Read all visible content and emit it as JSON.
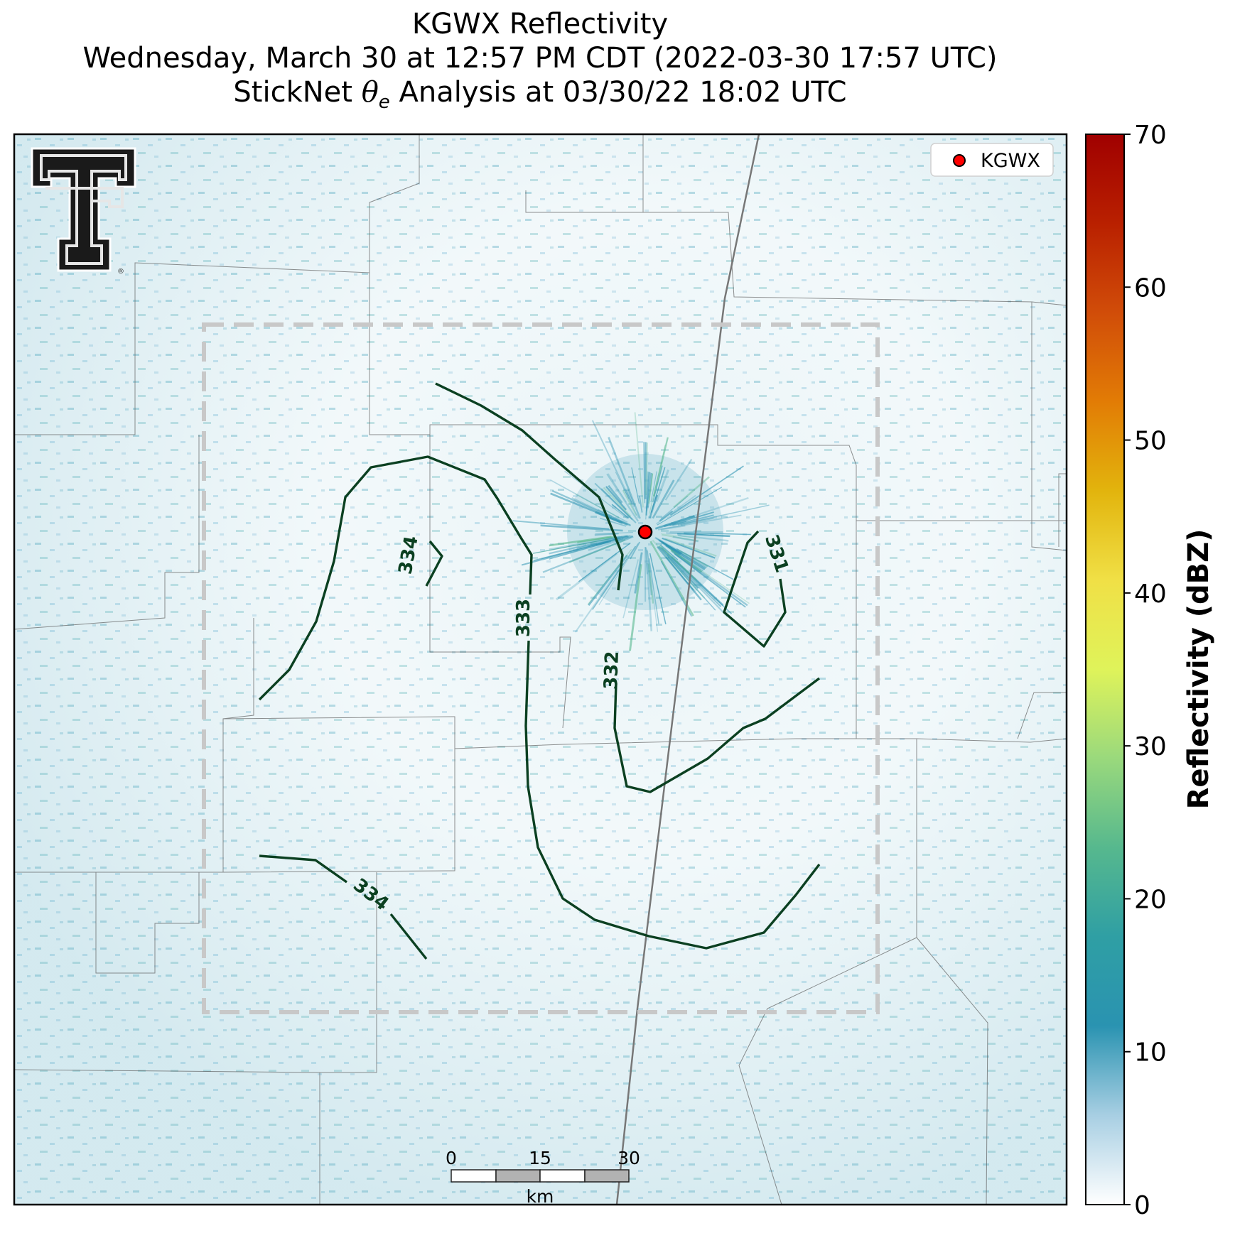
{
  "title": {
    "line1": "KGWX Reflectivity",
    "line2": "Wednesday, March 30 at 12:57 PM CDT (2022-03-30 17:57 UTC)",
    "line3_prefix": "StickNet ",
    "line3_symbol": "θ",
    "line3_subscript": "e",
    "line3_suffix": " Analysis at 03/30/22 18:02 UTC"
  },
  "legend": {
    "radar_label": "KGWX",
    "marker_color": "#ff0000"
  },
  "colorbar": {
    "label": "Reflectivity (dBZ)",
    "min": 0,
    "max": 70,
    "ticks": [
      "0",
      "10",
      "20",
      "30",
      "40",
      "50",
      "60",
      "70"
    ],
    "colors": [
      "#ffffff",
      "#a8cfe3",
      "#2a93b1",
      "#2f9fa4",
      "#56b88e",
      "#9ad97c",
      "#dff35a",
      "#f0e046",
      "#e2b40d",
      "#e27c05",
      "#d14d09",
      "#b92000",
      "#a00000"
    ]
  },
  "contours": {
    "variable": "theta_e",
    "color": "#0b4021",
    "labels": [
      "334",
      "333",
      "332",
      "331",
      "334"
    ]
  },
  "scale_bar": {
    "tick_labels": [
      "0",
      "15",
      "30"
    ],
    "unit": "km",
    "colors": [
      "#ffffff",
      "#b2b2b2"
    ]
  },
  "analysis_box": {
    "color": "#c8c8c8",
    "style": "dashed"
  },
  "logo": {
    "name": "Texas Tech Double T",
    "mark": "®"
  },
  "map": {
    "radar_site": "KGWX",
    "radar_color": "#ff0000"
  }
}
